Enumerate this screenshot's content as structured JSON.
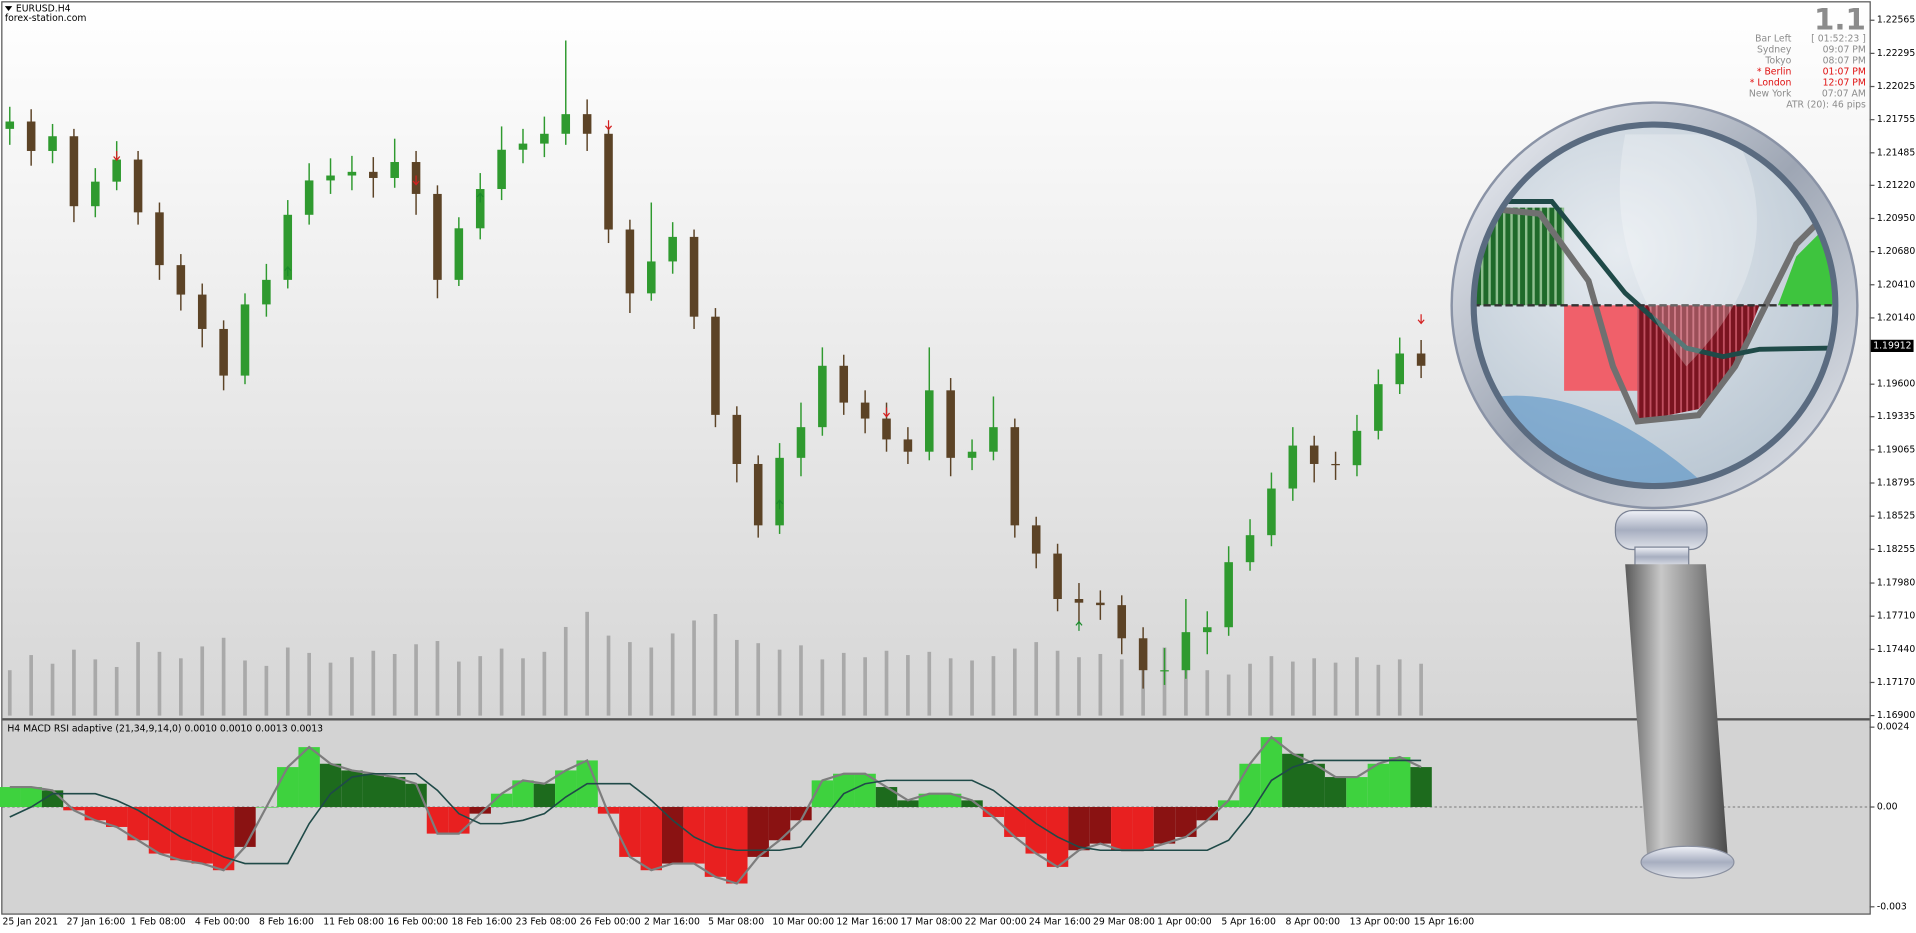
{
  "chart_data": [
    {
      "type": "candlestick",
      "title": "EURUSD.H4",
      "subtitle": "forex-station.com",
      "categories": [
        "25 Jan 2021",
        null,
        null,
        "27 Jan 16:00",
        null,
        null,
        "1 Feb 08:00",
        null,
        null,
        "4 Feb 00:00",
        null,
        null,
        "8 Feb 16:00",
        null,
        null,
        "11 Feb 08:00",
        null,
        null,
        "16 Feb 00:00",
        null,
        null,
        "18 Feb 16:00",
        null,
        null,
        "23 Feb 08:00",
        null,
        null,
        "26 Feb 00:00",
        null,
        null,
        "2 Mar 16:00",
        null,
        null,
        "5 Mar 08:00",
        null,
        null,
        "10 Mar 00:00",
        null,
        null,
        "12 Mar 16:00",
        null,
        null,
        "17 Mar 08:00",
        null,
        null,
        "22 Mar 00:00",
        null,
        null,
        "24 Mar 16:00",
        null,
        null,
        "29 Mar 08:00",
        null,
        null,
        "1 Apr 00:00",
        null,
        null,
        "5 Apr 16:00",
        null,
        null,
        "8 Apr 00:00",
        null,
        null,
        "13 Apr 00:00",
        null,
        null,
        "15 Apr 16:00"
      ],
      "open": [
        1.2168,
        1.2174,
        1.215,
        1.2162,
        1.2105,
        1.2125,
        1.2143,
        1.21,
        1.2057,
        1.2033,
        1.2005,
        1.1967,
        1.2025,
        1.2045,
        1.2098,
        1.2126,
        1.213,
        1.2133,
        1.2128,
        1.2141,
        1.2115,
        1.2045,
        1.2087,
        1.2119,
        1.2151,
        1.2156,
        1.2164,
        1.218,
        1.2164,
        1.2086,
        1.2034,
        1.206,
        1.208,
        1.2015,
        1.1935,
        1.1895,
        1.1845,
        1.19,
        1.1925,
        1.1975,
        1.1945,
        1.1932,
        1.1915,
        1.1905,
        1.1955,
        1.19,
        1.1905,
        1.1925,
        1.1845,
        1.1822,
        1.1785,
        1.1782,
        1.178,
        1.1753,
        1.1727,
        1.1727,
        1.1758,
        1.1762,
        1.1815,
        1.1837,
        1.1875,
        1.191,
        1.1895,
        1.1894,
        1.1922,
        1.196,
        1.1985
      ],
      "high": [
        1.2186,
        1.2184,
        1.2172,
        1.2168,
        1.2136,
        1.2158,
        1.215,
        1.2108,
        1.2066,
        1.2042,
        1.2012,
        1.2034,
        1.2058,
        1.211,
        1.214,
        1.2144,
        1.2146,
        1.2145,
        1.216,
        1.215,
        1.2122,
        1.2096,
        1.2132,
        1.217,
        1.2168,
        1.2178,
        1.224,
        1.2192,
        1.217,
        1.2094,
        1.2108,
        1.2092,
        1.2086,
        1.2022,
        1.1942,
        1.1902,
        1.1912,
        1.1945,
        1.199,
        1.1984,
        1.1955,
        1.1945,
        1.1925,
        1.199,
        1.1965,
        1.1915,
        1.195,
        1.1932,
        1.1852,
        1.183,
        1.1798,
        1.1792,
        1.1788,
        1.1762,
        1.1745,
        1.1785,
        1.1775,
        1.1828,
        1.185,
        1.1888,
        1.1925,
        1.1918,
        1.1905,
        1.1935,
        1.1972,
        1.1998,
        1.1996
      ],
      "low": [
        1.2155,
        1.2138,
        1.214,
        1.2092,
        1.2096,
        1.2118,
        1.209,
        1.2045,
        1.202,
        1.199,
        1.1955,
        1.196,
        1.2015,
        1.2038,
        1.209,
        1.2115,
        1.2118,
        1.2112,
        1.212,
        1.2098,
        1.203,
        1.204,
        1.2078,
        1.211,
        1.214,
        1.2145,
        1.2155,
        1.215,
        1.2075,
        1.2018,
        1.2028,
        1.205,
        1.2005,
        1.1925,
        1.188,
        1.1835,
        1.1838,
        1.1885,
        1.1918,
        1.1935,
        1.192,
        1.1905,
        1.1895,
        1.1898,
        1.1885,
        1.189,
        1.1898,
        1.1835,
        1.181,
        1.1775,
        1.1765,
        1.1768,
        1.174,
        1.1712,
        1.1715,
        1.172,
        1.174,
        1.1755,
        1.1808,
        1.1828,
        1.1865,
        1.188,
        1.1882,
        1.1885,
        1.1915,
        1.1952,
        1.1965
      ],
      "close": [
        1.2174,
        1.215,
        1.2162,
        1.2105,
        1.2125,
        1.2143,
        1.21,
        1.2057,
        1.2033,
        1.2005,
        1.1967,
        1.2025,
        1.2045,
        1.2098,
        1.2126,
        1.213,
        1.2133,
        1.2128,
        1.2141,
        1.2115,
        1.2045,
        1.2087,
        1.2119,
        1.2151,
        1.2156,
        1.2164,
        1.218,
        1.2164,
        1.2086,
        1.2034,
        1.206,
        1.208,
        1.2015,
        1.1935,
        1.1895,
        1.1845,
        1.19,
        1.1925,
        1.1975,
        1.1945,
        1.1932,
        1.1915,
        1.1905,
        1.1955,
        1.19,
        1.1905,
        1.1925,
        1.1845,
        1.1822,
        1.1785,
        1.1782,
        1.178,
        1.1753,
        1.1727,
        1.1727,
        1.1758,
        1.1762,
        1.1815,
        1.1837,
        1.1875,
        1.191,
        1.1895,
        1.1894,
        1.1922,
        1.196,
        1.1985,
        1.1975
      ],
      "volume": [
        4200,
        5600,
        4800,
        6100,
        5200,
        4500,
        6800,
        5900,
        5300,
        6400,
        7200,
        5100,
        4600,
        6300,
        5800,
        4900,
        5400,
        6000,
        5700,
        6600,
        6900,
        5000,
        5500,
        6200,
        5300,
        5900,
        8200,
        9600,
        7400,
        6800,
        6300,
        7600,
        8800,
        9400,
        7000,
        6700,
        6100,
        6500,
        5200,
        5800,
        5400,
        6000,
        5600,
        5900,
        5300,
        5100,
        5500,
        6200,
        6800,
        6000,
        5400,
        5700,
        5200,
        5600,
        6300,
        4600,
        4200,
        3800,
        4800,
        5500,
        5000,
        5300,
        4900,
        5400,
        4700,
        5200,
        4800
      ],
      "colors": {
        "up": "#2f9a2f",
        "down": "#5c4326",
        "volume": "#a9a9a9"
      },
      "ylim": [
        1.1688,
        1.2271
      ],
      "yticks": [
        1.22565,
        1.22295,
        1.22025,
        1.21755,
        1.21485,
        {
          "value": 1.2122,
          "label": "1.21220"
        },
        {
          "value": 1.2095,
          "label": "1.20950"
        },
        {
          "value": 1.2068,
          "label": "1.20680"
        },
        {
          "value": 1.2041,
          "label": "1.20410"
        },
        {
          "value": 1.2014,
          "label": "1.20140"
        },
        {
          "value": 1.196,
          "label": "1.19600"
        },
        1.19335,
        1.19065,
        1.18795,
        1.18525,
        1.18255,
        {
          "value": 1.1798,
          "label": "1.17980"
        },
        {
          "value": 1.1771,
          "label": "1.17710"
        },
        {
          "value": 1.1744,
          "label": "1.17440"
        },
        {
          "value": 1.1717,
          "label": "1.17170"
        },
        {
          "value": 1.169,
          "label": "1.16900"
        }
      ],
      "last_price": 1.19912,
      "signals": [
        {
          "index": 5,
          "price": 1.2146,
          "direction": "down"
        },
        {
          "index": 13,
          "price": 1.2052,
          "direction": "up"
        },
        {
          "index": 19,
          "price": 1.2126,
          "direction": "down"
        },
        {
          "index": 22,
          "price": 1.2112,
          "direction": "up"
        },
        {
          "index": 28,
          "price": 1.2171,
          "direction": "down"
        },
        {
          "index": 36,
          "price": 1.1862,
          "direction": "up"
        },
        {
          "index": 41,
          "price": 1.1937,
          "direction": "down"
        },
        {
          "index": 50,
          "price": 1.1763,
          "direction": "up"
        },
        {
          "index": 66,
          "price": 1.2013,
          "direction": "down"
        }
      ],
      "signal_colors": {
        "up": "#1b8a2a",
        "down": "#d42020"
      },
      "info_panel": {
        "big_label": "1.1",
        "rows": [
          {
            "label": "Bar Left",
            "value": "[ 01:52:23 ]",
            "color": "#8c8c8c"
          },
          {
            "label": "Sydney",
            "value": "09:07 PM",
            "color": "#8c8c8c"
          },
          {
            "label": "Tokyo",
            "value": "08:07 PM",
            "color": "#8c8c8c"
          },
          {
            "label": "* Berlin",
            "value": "01:07 PM",
            "color": "#e01010"
          },
          {
            "label": "* London",
            "value": "12:07 PM",
            "color": "#e01010"
          },
          {
            "label": "New York",
            "value": "07:07 AM",
            "color": "#8c8c8c"
          }
        ],
        "footer": "ATR (20): 46 pips"
      }
    },
    {
      "type": "bar",
      "title": "H4 MACD RSI adaptive (21,34,9,14,0) 0.0010 0.0010 0.0013 0.0013",
      "values": [
        0.0006,
        0.0006,
        0.0005,
        -0.0001,
        -0.0004,
        -0.0006,
        -0.001,
        -0.0014,
        -0.0016,
        -0.0017,
        -0.0019,
        -0.0012,
        0.0,
        0.0012,
        0.0018,
        0.0013,
        0.0011,
        0.001,
        0.0009,
        0.0007,
        -0.0008,
        -0.0008,
        -0.0002,
        0.0004,
        0.0008,
        0.0007,
        0.0011,
        0.0014,
        -0.0002,
        -0.0015,
        -0.0019,
        -0.0017,
        -0.0017,
        -0.0021,
        -0.0023,
        -0.0015,
        -0.001,
        -0.0004,
        0.0008,
        0.001,
        0.001,
        0.0006,
        0.0002,
        0.0004,
        0.0004,
        0.0002,
        -0.0003,
        -0.0009,
        -0.0014,
        -0.0018,
        -0.0013,
        -0.0011,
        -0.0013,
        -0.0013,
        -0.0011,
        -0.0009,
        -0.0004,
        0.0002,
        0.0013,
        0.0021,
        0.0016,
        0.0013,
        0.0009,
        0.0009,
        0.0013,
        0.0015,
        0.0012
      ],
      "colors": {
        "up_rising": "#3ed23e",
        "up_falling": "#1d6b1d",
        "down_rising": "#e82020",
        "down_falling": "#8a1212",
        "outline": "#7d7d7d"
      },
      "signal": {
        "values": [
          -0.0003,
          0.0,
          0.0004,
          0.0004,
          0.0004,
          0.0002,
          -0.0001,
          -0.0005,
          -0.0009,
          -0.0012,
          -0.0015,
          -0.0017,
          -0.0017,
          -0.0017,
          -0.0005,
          0.0004,
          0.0009,
          0.001,
          0.001,
          0.001,
          0.0005,
          -0.0002,
          -0.0005,
          -0.0005,
          -0.0004,
          -0.0002,
          0.0003,
          0.0007,
          0.0007,
          0.0007,
          0.0002,
          -0.0004,
          -0.0009,
          -0.0012,
          -0.0013,
          -0.0013,
          -0.0013,
          -0.0012,
          -0.0004,
          0.0004,
          0.0007,
          0.0008,
          0.0008,
          0.0008,
          0.0008,
          0.0008,
          0.0005,
          0.0,
          -0.0005,
          -0.0009,
          -0.0012,
          -0.0013,
          -0.0013,
          -0.0013,
          -0.0013,
          -0.0013,
          -0.0013,
          -0.001,
          -0.0002,
          0.0008,
          0.0012,
          0.0014,
          0.0014,
          0.0014,
          0.0014,
          0.0014,
          0.0014
        ],
        "color": "#1f4a48"
      },
      "ylim": [
        -0.0032,
        0.0026
      ],
      "yticks": [
        0.0024,
        {
          "value": 0,
          "label": "0.00"
        },
        -0.003
      ],
      "zero_line": true
    }
  ]
}
